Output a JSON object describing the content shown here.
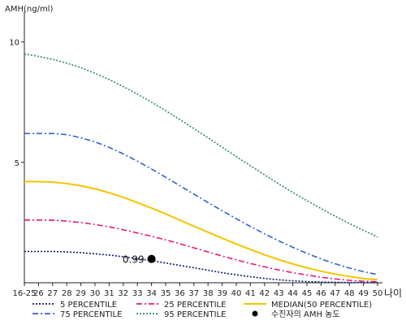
{
  "chart_data": {
    "type": "line",
    "ylabel": "AMH(ng/ml)",
    "xlabel": "나이",
    "ylim": [
      0,
      11
    ],
    "y_ticks": [
      5,
      10
    ],
    "x_ticks": [
      "16-25",
      "26",
      "27",
      "28",
      "29",
      "30",
      "31",
      "32",
      "33",
      "34",
      "35",
      "36",
      "37",
      "38",
      "39",
      "40",
      "41",
      "42",
      "43",
      "44",
      "45",
      "46",
      "47",
      "48",
      "49",
      "50"
    ],
    "x": [
      25,
      26,
      27,
      28,
      29,
      30,
      31,
      32,
      33,
      34,
      35,
      36,
      37,
      38,
      39,
      40,
      41,
      42,
      43,
      44,
      45,
      46,
      47,
      48,
      49,
      50
    ],
    "series": [
      {
        "name": "5 PERCENTILE",
        "color": "#0a1a6b",
        "style": "dotted",
        "values": [
          1.3,
          1.3,
          1.3,
          1.28,
          1.25,
          1.2,
          1.15,
          1.08,
          1.0,
          0.92,
          0.82,
          0.72,
          0.62,
          0.52,
          0.42,
          0.33,
          0.25,
          0.18,
          0.12,
          0.08,
          0.05,
          0.03,
          0.02,
          0.01,
          0.01,
          0.0
        ]
      },
      {
        "name": "25 PERCENTILE",
        "color": "#e0197d",
        "style": "dashdot",
        "values": [
          2.6,
          2.6,
          2.6,
          2.56,
          2.5,
          2.42,
          2.32,
          2.2,
          2.07,
          1.93,
          1.78,
          1.62,
          1.45,
          1.28,
          1.11,
          0.95,
          0.8,
          0.66,
          0.53,
          0.42,
          0.32,
          0.23,
          0.16,
          0.1,
          0.06,
          0.04
        ]
      },
      {
        "name": "MEDIAN(50 PERCENTILE)",
        "color": "#f2c500",
        "style": "solid",
        "values": [
          4.2,
          4.2,
          4.18,
          4.12,
          4.03,
          3.9,
          3.74,
          3.55,
          3.33,
          3.1,
          2.86,
          2.6,
          2.35,
          2.1,
          1.85,
          1.61,
          1.38,
          1.16,
          0.96,
          0.78,
          0.62,
          0.48,
          0.36,
          0.26,
          0.18,
          0.12
        ]
      },
      {
        "name": "75 PERCENTILE",
        "color": "#2f63c9",
        "style": "dashdot",
        "values": [
          6.2,
          6.2,
          6.2,
          6.15,
          6.02,
          5.85,
          5.62,
          5.35,
          5.05,
          4.72,
          4.38,
          4.03,
          3.68,
          3.33,
          2.99,
          2.66,
          2.34,
          2.03,
          1.74,
          1.47,
          1.22,
          0.99,
          0.79,
          0.61,
          0.46,
          0.34
        ]
      },
      {
        "name": "95 PERCENTILE",
        "color": "#2e8b57",
        "style": "dotted",
        "values": [
          9.5,
          9.4,
          9.28,
          9.12,
          8.93,
          8.7,
          8.44,
          8.15,
          7.83,
          7.5,
          7.15,
          6.78,
          6.4,
          6.02,
          5.63,
          5.24,
          4.86,
          4.48,
          4.11,
          3.75,
          3.41,
          3.08,
          2.76,
          2.46,
          2.18,
          1.9
        ]
      }
    ],
    "point": {
      "name": "수진자의 AMH 농도",
      "x": 34,
      "y": 0.99,
      "label": "0.99",
      "color": "#000000"
    },
    "legend": [
      {
        "name": "5 PERCENTILE",
        "color": "#0a1a6b",
        "style": "dotted"
      },
      {
        "name": "25 PERCENTILE",
        "color": "#e0197d",
        "style": "dashdot"
      },
      {
        "name": "MEDIAN(50 PERCENTILE)",
        "color": "#f2c500",
        "style": "solid"
      },
      {
        "name": "75 PERCENTILE",
        "color": "#2f63c9",
        "style": "dashdot"
      },
      {
        "name": "95 PERCENTILE",
        "color": "#2e8b57",
        "style": "dotted"
      },
      {
        "name": "수진자의 AMH 농도",
        "color": "#000000",
        "style": "marker"
      }
    ],
    "legend_position": "bottom",
    "grid": false
  }
}
